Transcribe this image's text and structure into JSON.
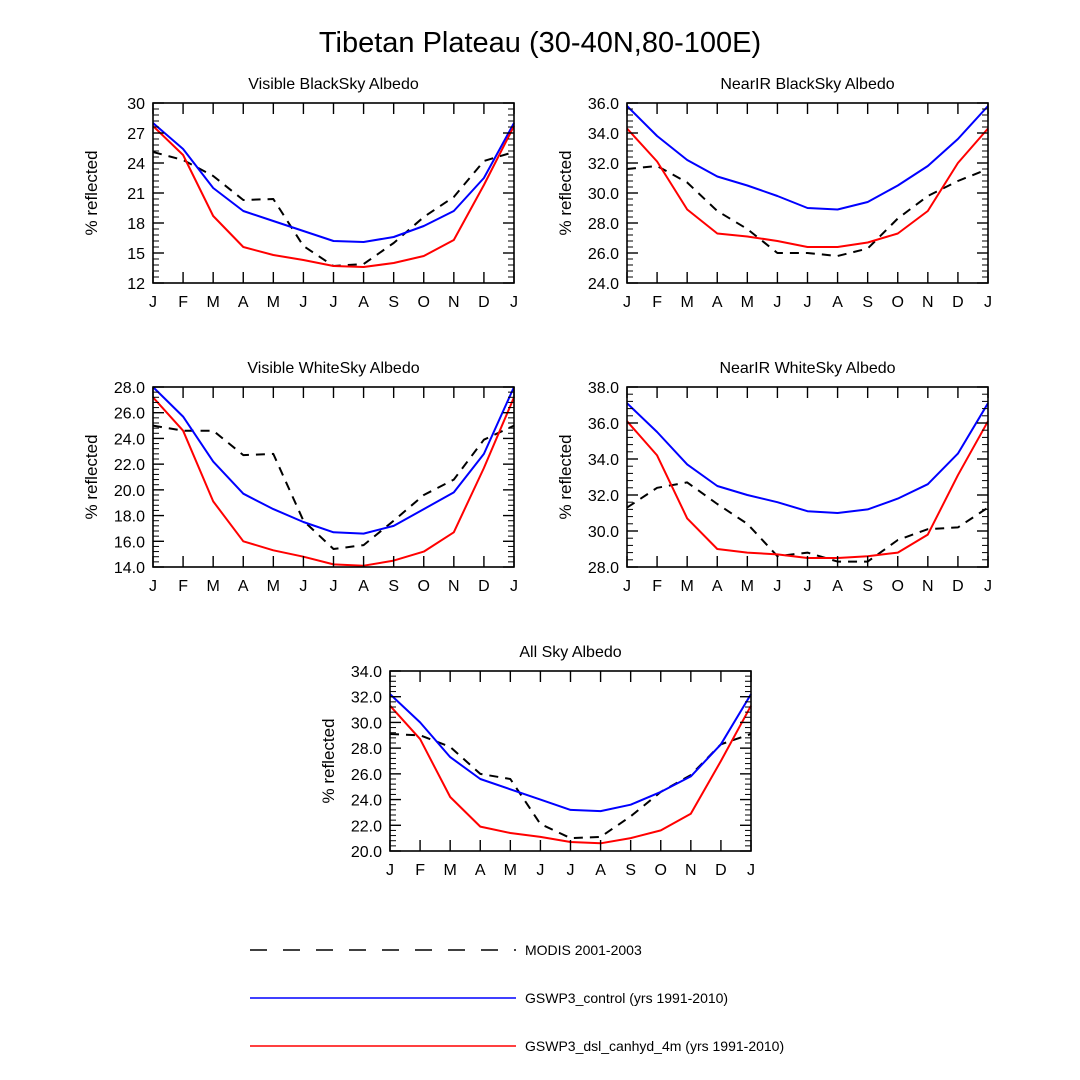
{
  "figure": {
    "title": "Tibetan Plateau (30-40N,80-100E)"
  },
  "colors": {
    "modis": "#000000",
    "control": "#0000ff",
    "dsl": "#ff0000"
  },
  "legend": [
    {
      "key": "modis",
      "label": "MODIS 2001-2003",
      "style": "dashed"
    },
    {
      "key": "control",
      "label": "GSWP3_control (yrs 1991-2010)",
      "style": "solid"
    },
    {
      "key": "dsl",
      "label": "GSWP3_dsl_canhyd_4m (yrs 1991-2010)",
      "style": "solid"
    }
  ],
  "chart_data": [
    {
      "type": "line",
      "title": "Visible BlackSky Albedo",
      "ylabel": "% reflected",
      "categories": [
        "J",
        "F",
        "M",
        "A",
        "M",
        "J",
        "J",
        "A",
        "S",
        "O",
        "N",
        "D",
        "J"
      ],
      "ylim": [
        12,
        30
      ],
      "yticks": [
        "12",
        "15",
        "18",
        "21",
        "24",
        "27",
        "30"
      ],
      "series": [
        {
          "name": "MODIS 2001-2003",
          "key": "modis",
          "values": [
            25.1,
            24.3,
            22.7,
            20.3,
            20.4,
            15.7,
            13.7,
            13.9,
            16.0,
            18.6,
            20.6,
            24.2,
            25.1
          ]
        },
        {
          "name": "GSWP3_control (yrs 1991-2010)",
          "key": "control",
          "values": [
            28.0,
            25.4,
            21.5,
            19.2,
            18.2,
            17.2,
            16.2,
            16.1,
            16.6,
            17.7,
            19.2,
            22.5,
            28.0
          ]
        },
        {
          "name": "GSWP3_dsl_canhyd_4m (yrs 1991-2010)",
          "key": "dsl",
          "values": [
            27.7,
            24.8,
            18.7,
            15.6,
            14.8,
            14.3,
            13.7,
            13.6,
            14.0,
            14.7,
            16.3,
            21.8,
            27.7
          ]
        }
      ]
    },
    {
      "type": "line",
      "title": "NearIR BlackSky Albedo",
      "ylabel": "% reflected",
      "categories": [
        "J",
        "F",
        "M",
        "A",
        "M",
        "J",
        "J",
        "A",
        "S",
        "O",
        "N",
        "D",
        "J"
      ],
      "ylim": [
        24,
        36
      ],
      "yticks": [
        "24.0",
        "26.0",
        "28.0",
        "30.0",
        "32.0",
        "34.0",
        "36.0"
      ],
      "series": [
        {
          "name": "MODIS 2001-2003",
          "key": "modis",
          "values": [
            31.6,
            31.8,
            30.7,
            28.8,
            27.6,
            26.0,
            26.0,
            25.8,
            26.3,
            28.3,
            29.8,
            30.8,
            31.6
          ]
        },
        {
          "name": "GSWP3_control (yrs 1991-2010)",
          "key": "control",
          "values": [
            35.8,
            33.8,
            32.2,
            31.1,
            30.5,
            29.8,
            29.0,
            28.9,
            29.4,
            30.5,
            31.8,
            33.6,
            35.8
          ]
        },
        {
          "name": "GSWP3_dsl_canhyd_4m (yrs 1991-2010)",
          "key": "dsl",
          "values": [
            34.3,
            32.1,
            28.9,
            27.3,
            27.1,
            26.8,
            26.4,
            26.4,
            26.7,
            27.3,
            28.8,
            32.0,
            34.3
          ]
        }
      ]
    },
    {
      "type": "line",
      "title": "Visible WhiteSky Albedo",
      "ylabel": "% reflected",
      "categories": [
        "J",
        "F",
        "M",
        "A",
        "M",
        "J",
        "J",
        "A",
        "S",
        "O",
        "N",
        "D",
        "J"
      ],
      "ylim": [
        14,
        28
      ],
      "yticks": [
        "14.0",
        "16.0",
        "18.0",
        "20.0",
        "22.0",
        "24.0",
        "26.0",
        "28.0"
      ],
      "series": [
        {
          "name": "MODIS 2001-2003",
          "key": "modis",
          "values": [
            25.0,
            24.6,
            24.6,
            22.7,
            22.8,
            17.6,
            15.4,
            15.7,
            17.6,
            19.6,
            20.8,
            23.9,
            25.0
          ]
        },
        {
          "name": "GSWP3_control (yrs 1991-2010)",
          "key": "control",
          "values": [
            28.0,
            25.7,
            22.2,
            19.7,
            18.5,
            17.5,
            16.7,
            16.6,
            17.2,
            18.5,
            19.8,
            22.8,
            28.0
          ]
        },
        {
          "name": "GSWP3_dsl_canhyd_4m (yrs 1991-2010)",
          "key": "dsl",
          "values": [
            27.2,
            24.6,
            19.1,
            16.0,
            15.3,
            14.8,
            14.2,
            14.1,
            14.5,
            15.2,
            16.7,
            21.7,
            27.2
          ]
        }
      ]
    },
    {
      "type": "line",
      "title": "NearIR WhiteSky Albedo",
      "ylabel": "% reflected",
      "categories": [
        "J",
        "F",
        "M",
        "A",
        "M",
        "J",
        "J",
        "A",
        "S",
        "O",
        "N",
        "D",
        "J"
      ],
      "ylim": [
        28,
        38
      ],
      "yticks": [
        "28.0",
        "30.0",
        "32.0",
        "34.0",
        "36.0",
        "38.0"
      ],
      "series": [
        {
          "name": "MODIS 2001-2003",
          "key": "modis",
          "values": [
            31.3,
            32.4,
            32.7,
            31.5,
            30.4,
            28.6,
            28.8,
            28.3,
            28.3,
            29.5,
            30.1,
            30.2,
            31.3
          ]
        },
        {
          "name": "GSWP3_control (yrs 1991-2010)",
          "key": "control",
          "values": [
            37.1,
            35.5,
            33.7,
            32.5,
            32.0,
            31.6,
            31.1,
            31.0,
            31.2,
            31.8,
            32.6,
            34.3,
            37.1
          ]
        },
        {
          "name": "GSWP3_dsl_canhyd_4m (yrs 1991-2010)",
          "key": "dsl",
          "values": [
            36.1,
            34.2,
            30.7,
            29.0,
            28.8,
            28.7,
            28.5,
            28.5,
            28.6,
            28.8,
            29.8,
            33.1,
            36.1
          ]
        }
      ]
    },
    {
      "type": "line",
      "title": "All Sky Albedo",
      "ylabel": "% reflected",
      "categories": [
        "J",
        "F",
        "M",
        "A",
        "M",
        "J",
        "J",
        "A",
        "S",
        "O",
        "N",
        "D",
        "J"
      ],
      "ylim": [
        20,
        34
      ],
      "yticks": [
        "20.0",
        "22.0",
        "24.0",
        "26.0",
        "28.0",
        "30.0",
        "32.0",
        "34.0"
      ],
      "series": [
        {
          "name": "MODIS 2001-2003",
          "key": "modis",
          "values": [
            29.1,
            29.0,
            28.1,
            26.0,
            25.6,
            22.1,
            21.0,
            21.1,
            22.7,
            24.6,
            25.9,
            28.3,
            29.1
          ]
        },
        {
          "name": "GSWP3_control (yrs 1991-2010)",
          "key": "control",
          "values": [
            32.2,
            30.0,
            27.3,
            25.6,
            24.8,
            24.0,
            23.2,
            23.1,
            23.6,
            24.6,
            25.8,
            28.3,
            32.2
          ]
        },
        {
          "name": "GSWP3_dsl_canhyd_4m (yrs 1991-2010)",
          "key": "dsl",
          "values": [
            31.3,
            28.7,
            24.2,
            21.9,
            21.4,
            21.1,
            20.7,
            20.6,
            21.0,
            21.6,
            22.9,
            27.0,
            31.3
          ]
        }
      ]
    }
  ]
}
